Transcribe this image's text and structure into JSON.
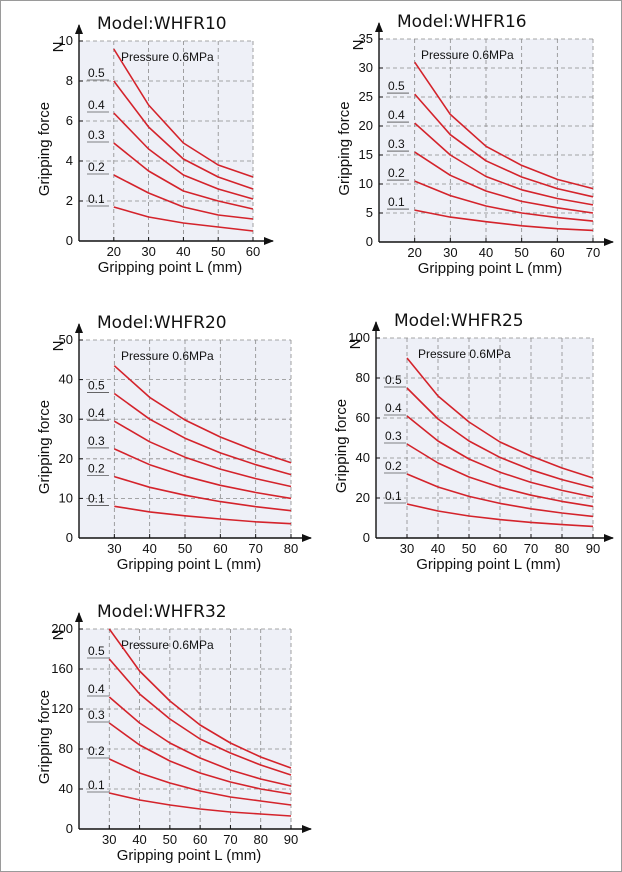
{
  "chart_data": [
    {
      "type": "line",
      "title": "Model:WHFR10",
      "note": "Pressure 0.6MPa",
      "xlabel": "Gripping point  L  (mm)",
      "ylabel": "Gripping force",
      "yunit": "N",
      "xlim": [
        10,
        60
      ],
      "ylim": [
        0,
        10
      ],
      "xticks": [
        20,
        30,
        40,
        50,
        60
      ],
      "yticks": [
        0,
        2,
        4,
        6,
        8,
        10
      ],
      "x": [
        20,
        30,
        40,
        50,
        60
      ],
      "series": [
        {
          "name": "0.1",
          "values": [
            1.7,
            1.2,
            0.9,
            0.7,
            0.5
          ]
        },
        {
          "name": "0.2",
          "values": [
            3.3,
            2.4,
            1.7,
            1.3,
            1.1
          ]
        },
        {
          "name": "0.3",
          "values": [
            4.9,
            3.5,
            2.5,
            2.0,
            1.6
          ]
        },
        {
          "name": "0.4",
          "values": [
            6.4,
            4.6,
            3.3,
            2.6,
            2.1
          ]
        },
        {
          "name": "0.5",
          "values": [
            8.0,
            5.7,
            4.1,
            3.2,
            2.6
          ]
        },
        {
          "name": "",
          "values": [
            9.6,
            6.8,
            4.9,
            3.8,
            3.2
          ]
        }
      ]
    },
    {
      "type": "line",
      "title": "Model:WHFR16",
      "note": "Pressure 0.6MPa",
      "xlabel": "Gripping point  L  (mm)",
      "ylabel": "Gripping force",
      "yunit": "N",
      "xlim": [
        10,
        70
      ],
      "ylim": [
        0,
        35
      ],
      "xticks": [
        20,
        30,
        40,
        50,
        60,
        70
      ],
      "yticks": [
        0,
        5,
        10,
        15,
        20,
        25,
        30,
        35
      ],
      "x": [
        20,
        30,
        40,
        50,
        60,
        70
      ],
      "series": [
        {
          "name": "0.1",
          "values": [
            5.5,
            4.3,
            3.5,
            2.8,
            2.3,
            2.0
          ]
        },
        {
          "name": "0.2",
          "values": [
            10.5,
            8.0,
            6.2,
            5.0,
            4.2,
            3.6
          ]
        },
        {
          "name": "0.3",
          "values": [
            15.5,
            11.5,
            8.8,
            7.0,
            5.9,
            5.0
          ]
        },
        {
          "name": "0.4",
          "values": [
            20.5,
            15.0,
            11.3,
            9.0,
            7.5,
            6.4
          ]
        },
        {
          "name": "0.5",
          "values": [
            25.5,
            18.5,
            14.0,
            11.2,
            9.2,
            7.8
          ]
        },
        {
          "name": "",
          "values": [
            31.0,
            22.0,
            16.5,
            13.2,
            10.8,
            9.2
          ]
        }
      ]
    },
    {
      "type": "line",
      "title": "Model:WHFR20",
      "note": "Pressure 0.6MPa",
      "xlabel": "Gripping point  L  (mm)",
      "ylabel": "Gripping force",
      "yunit": "N",
      "xlim": [
        20,
        80
      ],
      "ylim": [
        0,
        50
      ],
      "xticks": [
        30,
        40,
        50,
        60,
        70,
        80
      ],
      "yticks": [
        0,
        10,
        20,
        30,
        40,
        50
      ],
      "x": [
        30,
        40,
        50,
        60,
        70,
        80
      ],
      "series": [
        {
          "name": "0.1",
          "values": [
            8.0,
            6.6,
            5.6,
            4.8,
            4.1,
            3.6
          ]
        },
        {
          "name": "0.2",
          "values": [
            15.5,
            12.8,
            10.8,
            9.2,
            7.9,
            6.9
          ]
        },
        {
          "name": "0.3",
          "values": [
            22.5,
            18.5,
            15.6,
            13.3,
            11.5,
            10.0
          ]
        },
        {
          "name": "0.4",
          "values": [
            29.5,
            24.3,
            20.4,
            17.4,
            15.0,
            13.0
          ]
        },
        {
          "name": "0.5",
          "values": [
            36.5,
            30.0,
            25.2,
            21.5,
            18.5,
            16.0
          ]
        },
        {
          "name": "",
          "values": [
            43.5,
            35.5,
            29.8,
            25.5,
            22.0,
            19.0
          ]
        }
      ]
    },
    {
      "type": "line",
      "title": "Model:WHFR25",
      "note": "Pressure 0.6MPa",
      "xlabel": "Gripping point  L  (mm)",
      "ylabel": "Gripping force",
      "yunit": "N",
      "xlim": [
        20,
        90
      ],
      "ylim": [
        0,
        100
      ],
      "xticks": [
        30,
        40,
        50,
        60,
        70,
        80,
        90
      ],
      "yticks": [
        0,
        20,
        40,
        60,
        80,
        100
      ],
      "x": [
        30,
        40,
        50,
        60,
        70,
        80,
        90
      ],
      "series": [
        {
          "name": "0.1",
          "values": [
            17,
            13.5,
            11,
            9.2,
            7.8,
            6.7,
            5.8
          ]
        },
        {
          "name": "0.2",
          "values": [
            32,
            25.5,
            20.8,
            17.3,
            14.6,
            12.5,
            10.8
          ]
        },
        {
          "name": "0.3",
          "values": [
            47,
            37.5,
            30.5,
            25.4,
            21.4,
            18.3,
            15.8
          ]
        },
        {
          "name": "0.4",
          "values": [
            61,
            48.5,
            39.5,
            32.9,
            27.8,
            23.8,
            20.5
          ]
        },
        {
          "name": "0.5",
          "values": [
            75,
            59.5,
            48.5,
            40.3,
            34.1,
            29.2,
            25.2
          ]
        },
        {
          "name": "",
          "values": [
            90,
            71,
            58,
            48,
            41,
            35,
            30
          ]
        }
      ]
    },
    {
      "type": "line",
      "title": "Model:WHFR32",
      "note": "Pressure 0.6MPa",
      "xlabel": "Gripping point  L  (mm)",
      "ylabel": "Gripping force",
      "yunit": "N",
      "xlim": [
        20,
        90
      ],
      "ylim": [
        0,
        200
      ],
      "xticks": [
        30,
        40,
        50,
        60,
        70,
        80,
        90
      ],
      "yticks": [
        0,
        40,
        80,
        120,
        160,
        200
      ],
      "x": [
        30,
        40,
        50,
        60,
        70,
        80,
        90
      ],
      "series": [
        {
          "name": "0.1",
          "values": [
            36,
            29,
            24,
            20,
            17,
            15,
            13
          ]
        },
        {
          "name": "0.2",
          "values": [
            70,
            56,
            46,
            38,
            32,
            28,
            24
          ]
        },
        {
          "name": "0.3",
          "values": [
            106,
            84,
            68,
            56,
            47,
            40,
            35
          ]
        },
        {
          "name": "0.4",
          "values": [
            132,
            106,
            86,
            71,
            59,
            50,
            43
          ]
        },
        {
          "name": "0.5",
          "values": [
            170,
            135,
            110,
            90,
            76,
            64,
            54
          ]
        },
        {
          "name": "",
          "values": [
            200,
            158,
            128,
            104,
            86,
            72,
            61
          ]
        }
      ]
    }
  ],
  "colors": {
    "curve": "#d4232b",
    "plot_background": "#eef0f7",
    "grid": "#8a8a8a",
    "axis": "#111111"
  }
}
